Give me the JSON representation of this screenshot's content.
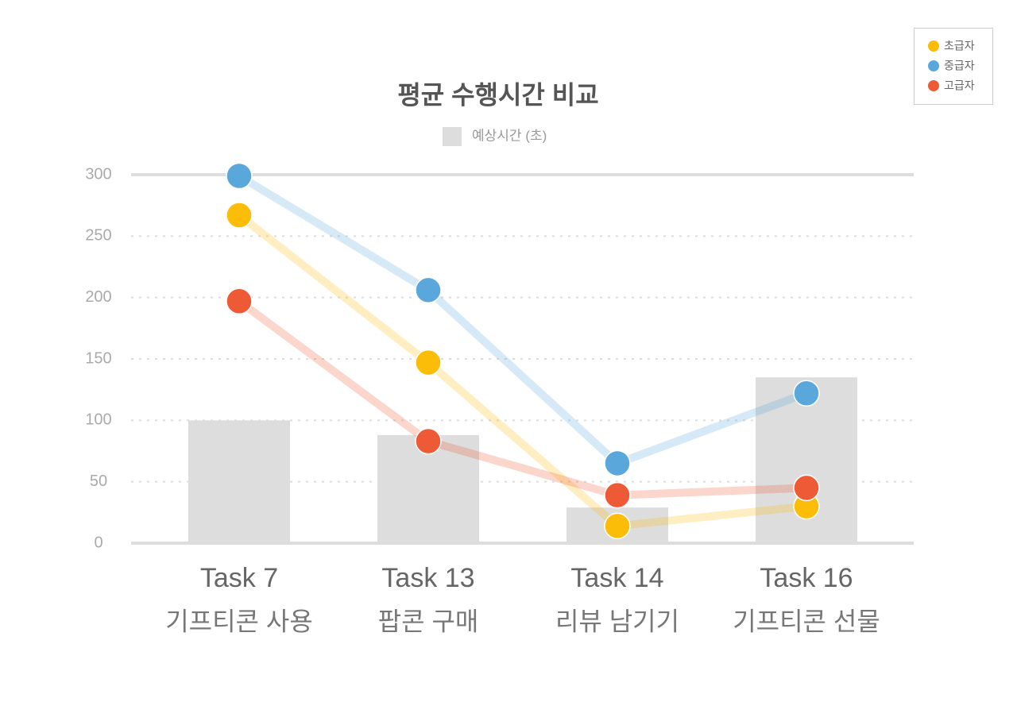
{
  "chart_data": {
    "type": "combo",
    "title": "평균 수행시간 비교",
    "categories": [
      "Task 7",
      "Task 13",
      "Task 14",
      "Task 16"
    ],
    "category_descriptions": [
      "기프티콘 사용",
      "팝콘 구매",
      "리뷰 남기기",
      "기프티콘 선물"
    ],
    "bar_series": {
      "name": "예상시간 (초)",
      "color": "#dddddd",
      "values": [
        100,
        88,
        29,
        135
      ]
    },
    "series": [
      {
        "name": "초급자",
        "color": "#fbbd08",
        "values": [
          267,
          147,
          14,
          30
        ]
      },
      {
        "name": "중급자",
        "color": "#5aa7dc",
        "values": [
          299,
          206,
          65,
          122
        ]
      },
      {
        "name": "고급자",
        "color": "#ee5a35",
        "values": [
          197,
          83,
          39,
          45
        ]
      }
    ],
    "ylim": [
      0,
      300
    ],
    "yticks": [
      0,
      50,
      100,
      150,
      200,
      250,
      300
    ],
    "grid": true,
    "legend": "top-right"
  }
}
